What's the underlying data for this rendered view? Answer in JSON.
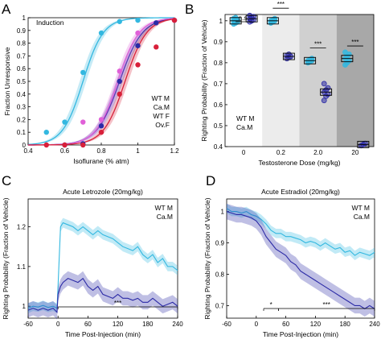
{
  "colors": {
    "wt_m": "#33b8e0",
    "ca_m": "#2b2aa6",
    "wt_f": "#e060d8",
    "ov_f": "#d8203a",
    "shade_0_2": "#ececec",
    "shade_2_0": "#d0d0d0",
    "shade_20": "#a8a8a8"
  },
  "chart_data": [
    {
      "panel": "A",
      "type": "scatter",
      "title": "Induction",
      "xlabel": "Isoflurane (% atm)",
      "ylabel": "Fraction Unresponsive",
      "xlim": [
        0.4,
        1.2
      ],
      "ylim": [
        0,
        1
      ],
      "xticks": [
        "0.4",
        "0.6",
        "0.8",
        "1",
        "1.2"
      ],
      "yticks": [
        "0",
        "0.1",
        "0.2",
        "0.3",
        "0.4",
        "0.5",
        "0.6",
        "0.7",
        "0.8",
        "0.9",
        "1"
      ],
      "legend": [
        "WT M",
        "Ca.M",
        "WT F",
        "Ov.F"
      ],
      "legend_position": "right",
      "series": [
        {
          "name": "WT M",
          "ec50": 0.7,
          "slope": 18,
          "points": [
            [
              0.5,
              0.1
            ],
            [
              0.6,
              0.18
            ],
            [
              0.7,
              0.57
            ],
            [
              0.8,
              0.88
            ],
            [
              0.9,
              0.97
            ],
            [
              1.0,
              0.98
            ]
          ]
        },
        {
          "name": "Ca.M",
          "ec50": 0.9,
          "slope": 16,
          "points": [
            [
              0.6,
              0.0
            ],
            [
              0.7,
              0.01
            ],
            [
              0.8,
              0.15
            ],
            [
              0.9,
              0.5
            ],
            [
              1.0,
              0.78
            ],
            [
              1.1,
              0.96
            ],
            [
              1.2,
              0.98
            ]
          ]
        },
        {
          "name": "WT F",
          "ec50": 0.89,
          "slope": 17,
          "points": [
            [
              0.7,
              0.18
            ],
            [
              0.8,
              0.2
            ],
            [
              0.9,
              0.58
            ],
            [
              1.0,
              0.88
            ],
            [
              1.2,
              0.98
            ]
          ]
        },
        {
          "name": "Ov.F",
          "ec50": 0.93,
          "slope": 17,
          "points": [
            [
              0.5,
              0.0
            ],
            [
              0.6,
              0.0
            ],
            [
              0.7,
              0.0
            ],
            [
              0.8,
              0.1
            ],
            [
              0.9,
              0.4
            ],
            [
              1.0,
              0.63
            ],
            [
              1.1,
              0.77
            ],
            [
              1.2,
              0.98
            ]
          ]
        }
      ]
    },
    {
      "panel": "B",
      "type": "scatter",
      "xlabel": "Testosterone Dose (mg/kg)",
      "ylabel": "Righting Probability (Fraction of Vehicle)",
      "categories": [
        "0",
        "0.2",
        "2.0",
        "20"
      ],
      "ylim": [
        0.4,
        1.03
      ],
      "yticks": [
        "0.4",
        "0.5",
        "0.6",
        "0.7",
        "0.8",
        "0.9",
        "1"
      ],
      "legend": [
        "WT M",
        "Ca.M"
      ],
      "legend_position": "left",
      "significance": [
        "n.s.",
        "***",
        "***",
        "***"
      ],
      "series": [
        {
          "name": "WT M",
          "means": [
            1.0,
            1.0,
            0.81,
            0.82
          ],
          "points": [
            [
              0.985,
              0.99,
              0.995,
              1.0,
              1.0,
              1.005,
              1.01,
              1.015
            ],
            [
              0.99,
              0.995,
              1.0,
              1.0,
              1.005,
              1.01
            ],
            [
              0.8,
              0.805,
              0.81,
              0.81,
              0.815,
              0.82
            ],
            [
              0.79,
              0.8,
              0.81,
              0.82,
              0.83,
              0.84,
              0.85
            ]
          ]
        },
        {
          "name": "Ca.M",
          "means": [
            1.01,
            0.83,
            0.66,
            0.41
          ],
          "points": [
            [
              0.995,
              1.0,
              1.005,
              1.01,
              1.015,
              1.02,
              1.025
            ],
            [
              0.82,
              0.825,
              0.83,
              0.835,
              0.84
            ],
            [
              0.62,
              0.64,
              0.65,
              0.66,
              0.67,
              0.68,
              0.7
            ],
            [
              0.405,
              0.41,
              0.415
            ]
          ]
        }
      ]
    },
    {
      "panel": "C",
      "type": "line",
      "title": "Acute Letrozole (20mg/kg)",
      "xlabel": "Time Post-Injection (min)",
      "ylabel": "Righting Probability (Fraction of Vehicle)",
      "xlim": [
        -60,
        240
      ],
      "ylim": [
        0.97,
        1.27
      ],
      "xticks": [
        "-60",
        "0",
        "60",
        "120",
        "180",
        "240"
      ],
      "yticks": [
        "1",
        "1.1",
        "1.2"
      ],
      "legend": [
        "WT M",
        "Ca.M"
      ],
      "legend_position": "top-right",
      "significance": "***",
      "significance_range": [
        0,
        240
      ],
      "series": [
        {
          "name": "WT M",
          "band": 0.012,
          "x": [
            -60,
            -50,
            -40,
            -30,
            -20,
            -10,
            -2,
            0,
            5,
            10,
            20,
            30,
            40,
            50,
            60,
            70,
            80,
            90,
            100,
            110,
            120,
            130,
            140,
            150,
            160,
            170,
            180,
            190,
            200,
            210,
            220,
            230,
            240
          ],
          "y": [
            0.995,
            1.0,
            0.998,
            1.002,
            0.997,
            1.0,
            0.995,
            1.05,
            1.2,
            1.21,
            1.205,
            1.2,
            1.19,
            1.2,
            1.19,
            1.18,
            1.19,
            1.18,
            1.175,
            1.17,
            1.16,
            1.15,
            1.145,
            1.14,
            1.15,
            1.13,
            1.12,
            1.13,
            1.11,
            1.12,
            1.1,
            1.1,
            1.09
          ]
        },
        {
          "name": "Ca.M",
          "band": 0.018,
          "x": [
            -60,
            -50,
            -40,
            -30,
            -20,
            -10,
            -2,
            0,
            5,
            10,
            20,
            30,
            40,
            50,
            60,
            70,
            80,
            90,
            100,
            110,
            120,
            130,
            140,
            150,
            160,
            170,
            180,
            190,
            200,
            210,
            220,
            230,
            240
          ],
          "y": [
            0.99,
            0.995,
            0.99,
            0.995,
            0.99,
            0.995,
            0.985,
            1.03,
            1.05,
            1.06,
            1.07,
            1.065,
            1.06,
            1.07,
            1.05,
            1.04,
            1.05,
            1.03,
            1.025,
            1.02,
            1.03,
            1.02,
            1.02,
            1.015,
            1.02,
            1.01,
            1.01,
            1.02,
            1.01,
            1.0,
            1.005,
            1.01,
            1.0
          ]
        }
      ]
    },
    {
      "panel": "D",
      "type": "line",
      "title": "Acute Estradiol (20mg/kg)",
      "xlabel": "Time Post-Injection (min)",
      "ylabel": "Righting Probability (Fraction of Vehicle)",
      "xlim": [
        -60,
        240
      ],
      "ylim": [
        0.66,
        1.04
      ],
      "xticks": [
        "-60",
        "0",
        "60",
        "120",
        "180",
        "240"
      ],
      "yticks": [
        "0.7",
        "0.8",
        "0.9",
        "1"
      ],
      "legend": [
        "WT M",
        "Ca.M"
      ],
      "legend_position": "top-right",
      "significance": [
        "*",
        "***"
      ],
      "significance_ranges": [
        [
          15,
          45
        ],
        [
          45,
          240
        ]
      ],
      "series": [
        {
          "name": "WT M",
          "band": 0.015,
          "x": [
            -60,
            -50,
            -40,
            -30,
            -20,
            -10,
            0,
            10,
            20,
            30,
            40,
            50,
            60,
            70,
            80,
            90,
            100,
            110,
            120,
            130,
            140,
            150,
            160,
            170,
            180,
            190,
            200,
            210,
            220,
            230,
            240
          ],
          "y": [
            1.01,
            1.0,
            1.0,
            0.995,
            1.0,
            0.99,
            0.985,
            0.975,
            0.96,
            0.94,
            0.93,
            0.93,
            0.92,
            0.92,
            0.915,
            0.91,
            0.9,
            0.905,
            0.9,
            0.89,
            0.9,
            0.89,
            0.88,
            0.885,
            0.87,
            0.875,
            0.86,
            0.87,
            0.865,
            0.86,
            0.87
          ]
        },
        {
          "name": "Ca.M",
          "band": 0.025,
          "x": [
            -60,
            -50,
            -40,
            -30,
            -20,
            -10,
            0,
            10,
            20,
            30,
            40,
            50,
            60,
            70,
            80,
            90,
            100,
            110,
            120,
            130,
            140,
            150,
            160,
            170,
            180,
            190,
            200,
            210,
            220,
            230,
            240
          ],
          "y": [
            1.0,
            0.995,
            0.99,
            0.99,
            0.985,
            0.98,
            0.97,
            0.95,
            0.92,
            0.9,
            0.88,
            0.87,
            0.86,
            0.84,
            0.83,
            0.81,
            0.8,
            0.79,
            0.78,
            0.77,
            0.76,
            0.75,
            0.74,
            0.73,
            0.72,
            0.71,
            0.7,
            0.7,
            0.69,
            0.7,
            0.69
          ]
        }
      ]
    }
  ],
  "panel_letters": [
    "A",
    "B",
    "C",
    "D"
  ]
}
